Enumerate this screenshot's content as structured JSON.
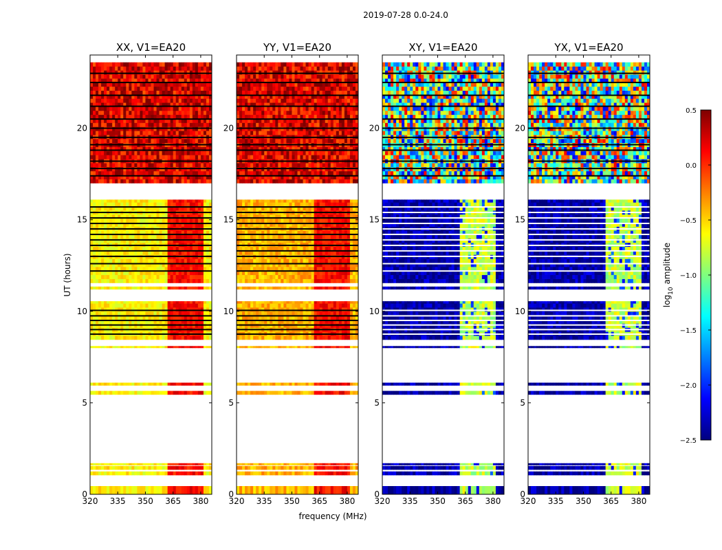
{
  "figure_title": "2019-07-28 0.0-24.0",
  "shared_xlabel": "frequency (MHz)",
  "colorbar": {
    "label_prefix": "log",
    "label_sub": "10",
    "label_suffix": " amplitude",
    "ticks": [
      "0.5",
      "0.0",
      "−0.5",
      "−1.0",
      "−1.5",
      "−2.0",
      "−2.5"
    ],
    "tick_values": [
      0.5,
      0.0,
      -0.5,
      -1.0,
      -1.5,
      -2.0,
      -2.5
    ],
    "range": [
      -2.5,
      0.5
    ],
    "colormap": "jet",
    "colors": [
      "#00007f",
      "#0000ff",
      "#007fff",
      "#00ffff",
      "#7fff7f",
      "#ffff00",
      "#ff7f00",
      "#ff0000",
      "#7f0000"
    ]
  },
  "chart_data": [
    {
      "type": "heatmap",
      "title": "XX, V1=EA20",
      "xlabel": "",
      "ylabel": "UT (hours)",
      "xlim": [
        320,
        386
      ],
      "ylim": [
        0,
        24
      ],
      "xticks": [
        "320",
        "335",
        "350",
        "365",
        "380"
      ],
      "xtick_values": [
        320,
        335,
        350,
        365,
        380
      ],
      "yticks": [
        "0",
        "5",
        "10",
        "15",
        "20"
      ],
      "ytick_values": [
        0,
        5,
        10,
        15,
        20
      ],
      "approx_log10_amplitude": {
        "hours_0_to_16_below_362MHz": -0.6,
        "hours_0_to_16_362_to_380MHz": 0.1,
        "hours_17_to_24": 0.2
      }
    },
    {
      "type": "heatmap",
      "title": "YY, V1=EA20",
      "xlabel": "",
      "ylabel": "",
      "xlim": [
        320,
        386
      ],
      "ylim": [
        0,
        24
      ],
      "xticks": [
        "320",
        "335",
        "350",
        "365",
        "380"
      ],
      "xtick_values": [
        320,
        335,
        350,
        365,
        380
      ],
      "yticks": [
        "0",
        "5",
        "10",
        "15",
        "20"
      ],
      "ytick_values": [
        0,
        5,
        10,
        15,
        20
      ],
      "approx_log10_amplitude": {
        "hours_0_to_16_below_362MHz": -0.4,
        "hours_0_to_16_362_to_380MHz": 0.1,
        "hours_17_to_24": 0.2
      }
    },
    {
      "type": "heatmap",
      "title": "XY, V1=EA20",
      "xlabel": "",
      "ylabel": "",
      "xlim": [
        320,
        386
      ],
      "ylim": [
        0,
        24
      ],
      "xticks": [
        "320",
        "335",
        "350",
        "365",
        "380"
      ],
      "xtick_values": [
        320,
        335,
        350,
        365,
        380
      ],
      "yticks": [
        "0",
        "5",
        "10",
        "15",
        "20"
      ],
      "ytick_values": [
        0,
        5,
        10,
        15,
        20
      ],
      "approx_log10_amplitude": {
        "hours_0_to_16_below_362MHz": -2.4,
        "hours_0_to_16_362_to_380MHz": -0.8,
        "hours_17_to_24": -1.0
      }
    },
    {
      "type": "heatmap",
      "title": "YX, V1=EA20",
      "xlabel": "",
      "ylabel": "",
      "xlim": [
        320,
        386
      ],
      "ylim": [
        0,
        24
      ],
      "xticks": [
        "320",
        "335",
        "350",
        "365",
        "380"
      ],
      "xtick_values": [
        320,
        335,
        350,
        365,
        380
      ],
      "yticks": [
        "0",
        "5",
        "10",
        "15",
        "20"
      ],
      "ytick_values": [
        0,
        5,
        10,
        15,
        20
      ],
      "approx_log10_amplitude": {
        "hours_0_to_16_below_362MHz": -2.4,
        "hours_0_to_16_362_to_380MHz": -0.8,
        "hours_17_to_24": -1.0
      }
    }
  ],
  "data_bands_hours": [
    [
      0.0,
      0.45
    ],
    [
      1.05,
      1.25
    ],
    [
      1.35,
      1.55
    ],
    [
      1.6,
      1.7
    ],
    [
      5.45,
      5.65
    ],
    [
      5.95,
      6.1
    ],
    [
      8.0,
      8.1
    ],
    [
      8.45,
      10.55
    ],
    [
      11.2,
      11.35
    ],
    [
      11.55,
      16.1
    ],
    [
      17.0,
      23.6
    ]
  ],
  "blank_lines_hours": [
    8.75,
    9.0,
    9.25,
    9.5,
    9.75,
    10.05,
    12.2,
    12.6,
    13.0,
    13.3,
    13.6,
    13.9,
    14.2,
    14.5,
    14.8,
    15.1,
    15.4,
    15.7,
    17.4,
    17.8,
    18.2,
    18.8,
    19.1,
    19.5,
    20.0,
    20.5,
    21.2,
    21.8,
    22.5,
    23.0
  ]
}
